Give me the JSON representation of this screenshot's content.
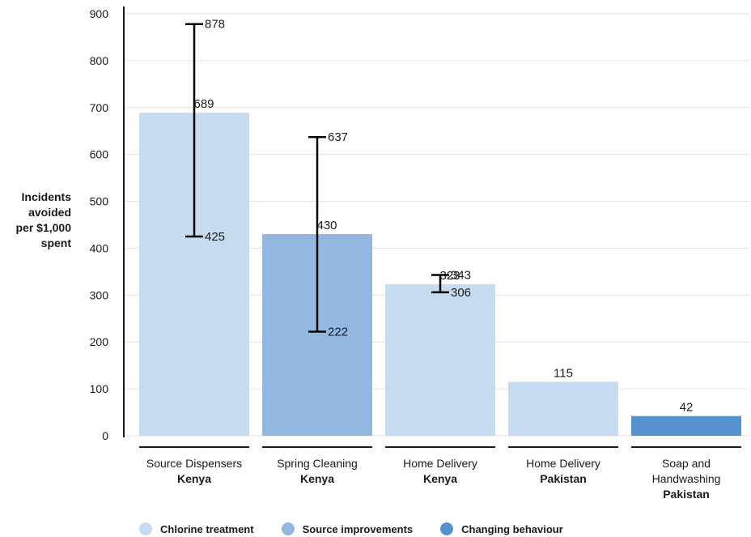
{
  "chart_data": {
    "type": "bar",
    "ylabel_lines": [
      "Incidents",
      "avoided",
      "per $1,000",
      "spent"
    ],
    "ylim": [
      0,
      900
    ],
    "yticks": [
      "0",
      "100",
      "200",
      "300",
      "400",
      "500",
      "600",
      "700",
      "800",
      "900"
    ],
    "grid": true,
    "legend_placement": "bottom-left",
    "categories": [
      {
        "line1": "Source Dispensers",
        "line2": "",
        "bold": "Kenya"
      },
      {
        "line1": "Spring Cleaning",
        "line2": "",
        "bold": "Kenya"
      },
      {
        "line1": "Home Delivery",
        "line2": "",
        "bold": "Kenya"
      },
      {
        "line1": "Home Delivery",
        "line2": "",
        "bold": "Pakistan"
      },
      {
        "line1": "Soap and",
        "line2": "Handwashing",
        "bold": "Pakistan"
      }
    ],
    "values": [
      689,
      430,
      323,
      115,
      42
    ],
    "value_labels": [
      "689",
      "430",
      "323",
      "115",
      "42"
    ],
    "groups": [
      "Chlorine treatment",
      "Source improvements",
      "Chlorine treatment",
      "Chlorine treatment",
      "Changing behaviour"
    ],
    "error_bars": [
      {
        "high": 878,
        "low": 425,
        "high_label": "878",
        "low_label": "425"
      },
      {
        "high": 637,
        "low": 222,
        "high_label": "637",
        "low_label": "222"
      },
      {
        "high": 343,
        "low": 306,
        "high_label": "343",
        "low_label": "306"
      },
      null,
      null
    ],
    "legend": [
      {
        "label": "Chlorine treatment",
        "color": "#c6dbf0"
      },
      {
        "label": "Source improvements",
        "color": "#92b8e1"
      },
      {
        "label": "Changing behaviour",
        "color": "#5592d0"
      }
    ]
  }
}
